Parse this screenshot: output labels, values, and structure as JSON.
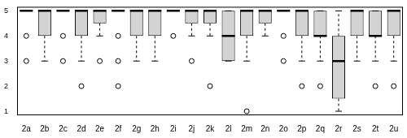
{
  "chart_data": {
    "type": "boxplot",
    "categories": [
      "2a",
      "2b",
      "2c",
      "2d",
      "2e",
      "2f",
      "2g",
      "2h",
      "2i",
      "2j",
      "2k",
      "2l",
      "2m",
      "2n",
      "2o",
      "2p",
      "2q",
      "2r",
      "2s",
      "2t",
      "2u"
    ],
    "min": [
      5,
      3,
      5,
      3,
      4,
      5,
      3,
      3,
      5,
      4,
      4,
      3,
      3,
      4,
      5,
      3,
      3,
      1,
      3,
      3,
      3
    ],
    "q1": [
      5,
      4,
      5,
      4,
      4.5,
      5,
      4,
      4,
      5,
      4.5,
      4.5,
      3,
      4,
      4.5,
      5,
      4,
      4,
      1.5,
      4,
      4,
      4
    ],
    "median": [
      5,
      5,
      5,
      5,
      5,
      5,
      5,
      5,
      5,
      5,
      5,
      4,
      5,
      5,
      5,
      5,
      4,
      3,
      5,
      4,
      5
    ],
    "q3": [
      5,
      5,
      5,
      5,
      5,
      5,
      5,
      5,
      5,
      5,
      5,
      5,
      5,
      5,
      5,
      5,
      5,
      4,
      5,
      5,
      5
    ],
    "max": [
      5,
      5,
      5,
      5,
      5,
      5,
      5,
      5,
      5,
      5,
      5,
      5,
      5,
      5,
      5,
      5,
      5,
      5,
      5,
      5,
      5
    ],
    "outliers": [
      [
        4,
        3
      ],
      [],
      [
        4,
        3
      ],
      [
        2
      ],
      [
        3
      ],
      [
        4,
        3,
        2
      ],
      [],
      [],
      [
        4
      ],
      [
        3
      ],
      [
        2
      ],
      [],
      [
        1
      ],
      [],
      [
        4,
        3
      ],
      [
        2
      ],
      [
        2
      ],
      [],
      [],
      [
        2
      ],
      [
        2
      ]
    ],
    "color": "#d3d3d3",
    "ylim": [
      0.84,
      5.16
    ],
    "yticks": [
      1,
      2,
      3,
      4,
      5
    ],
    "grid": false
  }
}
